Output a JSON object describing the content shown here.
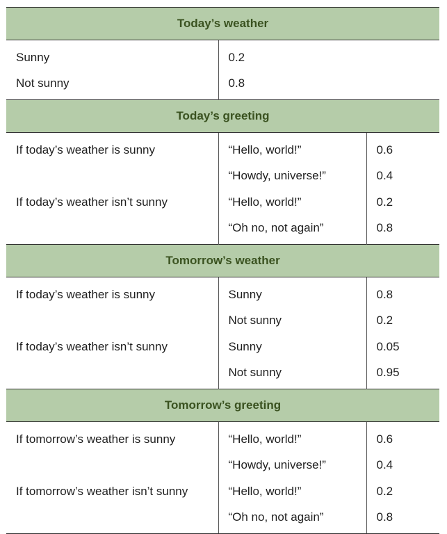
{
  "sections": [
    {
      "title": "Today’s weather",
      "rows": [
        {
          "condition": "Sunny",
          "value": "0.2"
        },
        {
          "condition": "Not sunny",
          "value": "0.8"
        }
      ]
    },
    {
      "title": "Today’s greeting",
      "rows": [
        {
          "condition": "If today’s weather is sunny",
          "outcome": "“Hello, world!”",
          "prob": "0.6"
        },
        {
          "condition": "",
          "outcome": "“Howdy, universe!”",
          "prob": "0.4"
        },
        {
          "condition": "If today’s weather isn’t sunny",
          "outcome": "“Hello, world!”",
          "prob": "0.2"
        },
        {
          "condition": "",
          "outcome": "“Oh no, not again”",
          "prob": "0.8"
        }
      ]
    },
    {
      "title": "Tomorrow’s weather",
      "rows": [
        {
          "condition": "If today’s weather is sunny",
          "outcome": "Sunny",
          "prob": "0.8"
        },
        {
          "condition": "",
          "outcome": "Not sunny",
          "prob": "0.2"
        },
        {
          "condition": "If today’s weather isn’t sunny",
          "outcome": "Sunny",
          "prob": "0.05"
        },
        {
          "condition": "",
          "outcome": "Not sunny",
          "prob": "0.95"
        }
      ]
    },
    {
      "title": "Tomorrow’s greeting",
      "rows": [
        {
          "condition": "If tomorrow’s weather is sunny",
          "outcome": "“Hello, world!”",
          "prob": "0.6"
        },
        {
          "condition": "",
          "outcome": "“Howdy, universe!”",
          "prob": "0.4"
        },
        {
          "condition": "If tomorrow’s weather isn’t sunny",
          "outcome": "“Hello, world!”",
          "prob": "0.2"
        },
        {
          "condition": "",
          "outcome": "“Oh no, not again”",
          "prob": "0.8"
        }
      ]
    }
  ]
}
